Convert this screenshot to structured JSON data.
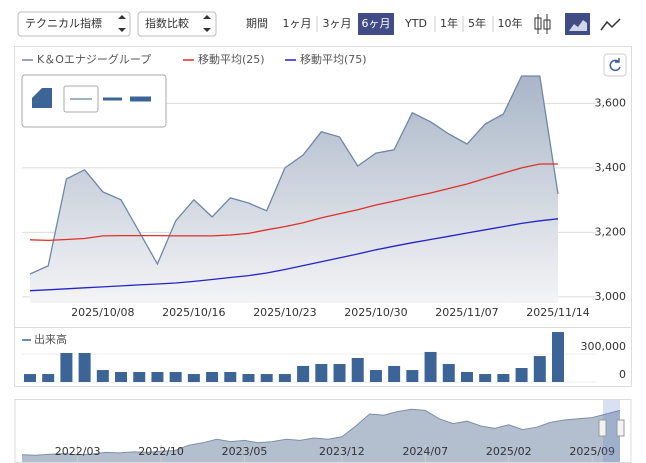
{
  "toolbar": {
    "indicator": "テクニカル指標",
    "compare": "指数比較",
    "period_label": "期間",
    "periods": [
      "1ヶ月",
      "3ヶ月",
      "6ヶ月",
      "YTD",
      "1年",
      "5年",
      "10年"
    ],
    "selected_period": 2
  },
  "chart_data": [
    {
      "type": "area",
      "categories": [
        null,
        null,
        null,
        null,
        "2025/10/08",
        null,
        null,
        null,
        null,
        "2025/10/16",
        null,
        null,
        null,
        null,
        "2025/10/23",
        null,
        null,
        null,
        null,
        "2025/10/30",
        null,
        null,
        null,
        null,
        "2025/11/07",
        null,
        null,
        null,
        null,
        "2025/11/14"
      ],
      "series": [
        {
          "name": "K＆Oエナジーグループ",
          "type": "area",
          "color": "#6f87a8",
          "values": [
            3071,
            3096,
            3366,
            3394,
            3326,
            3301,
            3202,
            3102,
            3236,
            3301,
            3248,
            3307,
            3291,
            3267,
            3400,
            3440,
            3512,
            3496,
            3406,
            3446,
            3456,
            3571,
            3543,
            3505,
            3474,
            3536,
            3567,
            3685,
            3685,
            3319
          ]
        },
        {
          "name": "移動平均(25)",
          "type": "line",
          "color": "#e0302a",
          "values": [
            3177,
            3175,
            3178,
            3181,
            3189,
            3190,
            3190,
            3190,
            3189,
            3189,
            3189,
            3192,
            3197,
            3208,
            3218,
            3230,
            3245,
            3258,
            3270,
            3285,
            3297,
            3310,
            3322,
            3336,
            3350,
            3367,
            3384,
            3400,
            3412,
            3412
          ]
        },
        {
          "name": "移動平均(75)",
          "type": "line",
          "color": "#2424c8",
          "values": [
            3019,
            3022,
            3025,
            3028,
            3031,
            3034,
            3037,
            3040,
            3043,
            3048,
            3054,
            3060,
            3066,
            3074,
            3085,
            3097,
            3109,
            3121,
            3133,
            3146,
            3157,
            3168,
            3178,
            3188,
            3198,
            3208,
            3218,
            3228,
            3236,
            3242
          ]
        }
      ],
      "ylim": [
        2981,
        3716
      ],
      "yticks": [
        {
          "value": 3000,
          "label": "3,000"
        },
        {
          "value": 3200,
          "label": "3,200"
        },
        {
          "value": 3400,
          "label": "3,400"
        },
        {
          "value": 3600,
          "label": "3,600"
        }
      ],
      "grid": true
    },
    {
      "type": "bar",
      "title": "出来高",
      "color": "#3d6496",
      "values": [
        86000,
        86000,
        313000,
        313000,
        129000,
        108000,
        108000,
        108000,
        108000,
        86000,
        108000,
        108000,
        86000,
        86000,
        86000,
        173000,
        194000,
        194000,
        259000,
        129000,
        173000,
        129000,
        324000,
        194000,
        108000,
        86000,
        86000,
        151000,
        280000,
        539000
      ],
      "ylim": [
        0,
        550000
      ],
      "yticks": [
        0,
        {
          "value": 300000,
          "label": "300,000"
        }
      ]
    },
    {
      "type": "navigator",
      "color": "#7d8fa8",
      "categories": [
        null,
        null,
        null,
        null,
        "2022/03",
        null,
        null,
        null,
        null,
        null,
        "2022/10",
        null,
        null,
        null,
        null,
        null,
        "2023/05",
        null,
        null,
        null,
        null,
        null,
        null,
        "2023/12",
        null,
        null,
        null,
        null,
        null,
        "2024/07",
        null,
        null,
        null,
        null,
        null,
        "2025/02",
        null,
        null,
        null,
        null,
        null,
        "2025/09",
        null,
        null
      ],
      "values": [
        1800,
        1780,
        1820,
        1850,
        1800,
        1830,
        1900,
        1880,
        1920,
        1900,
        1950,
        1980,
        2200,
        2300,
        2450,
        2350,
        2400,
        2300,
        2350,
        2450,
        2400,
        2500,
        2450,
        2550,
        3000,
        3500,
        3450,
        3600,
        3700,
        3650,
        3300,
        3100,
        3200,
        3000,
        2900,
        3050,
        2850,
        2950,
        3150,
        3250,
        3300,
        3350,
        3500,
        3650
      ],
      "ylim": [
        1500,
        4000
      ]
    }
  ]
}
